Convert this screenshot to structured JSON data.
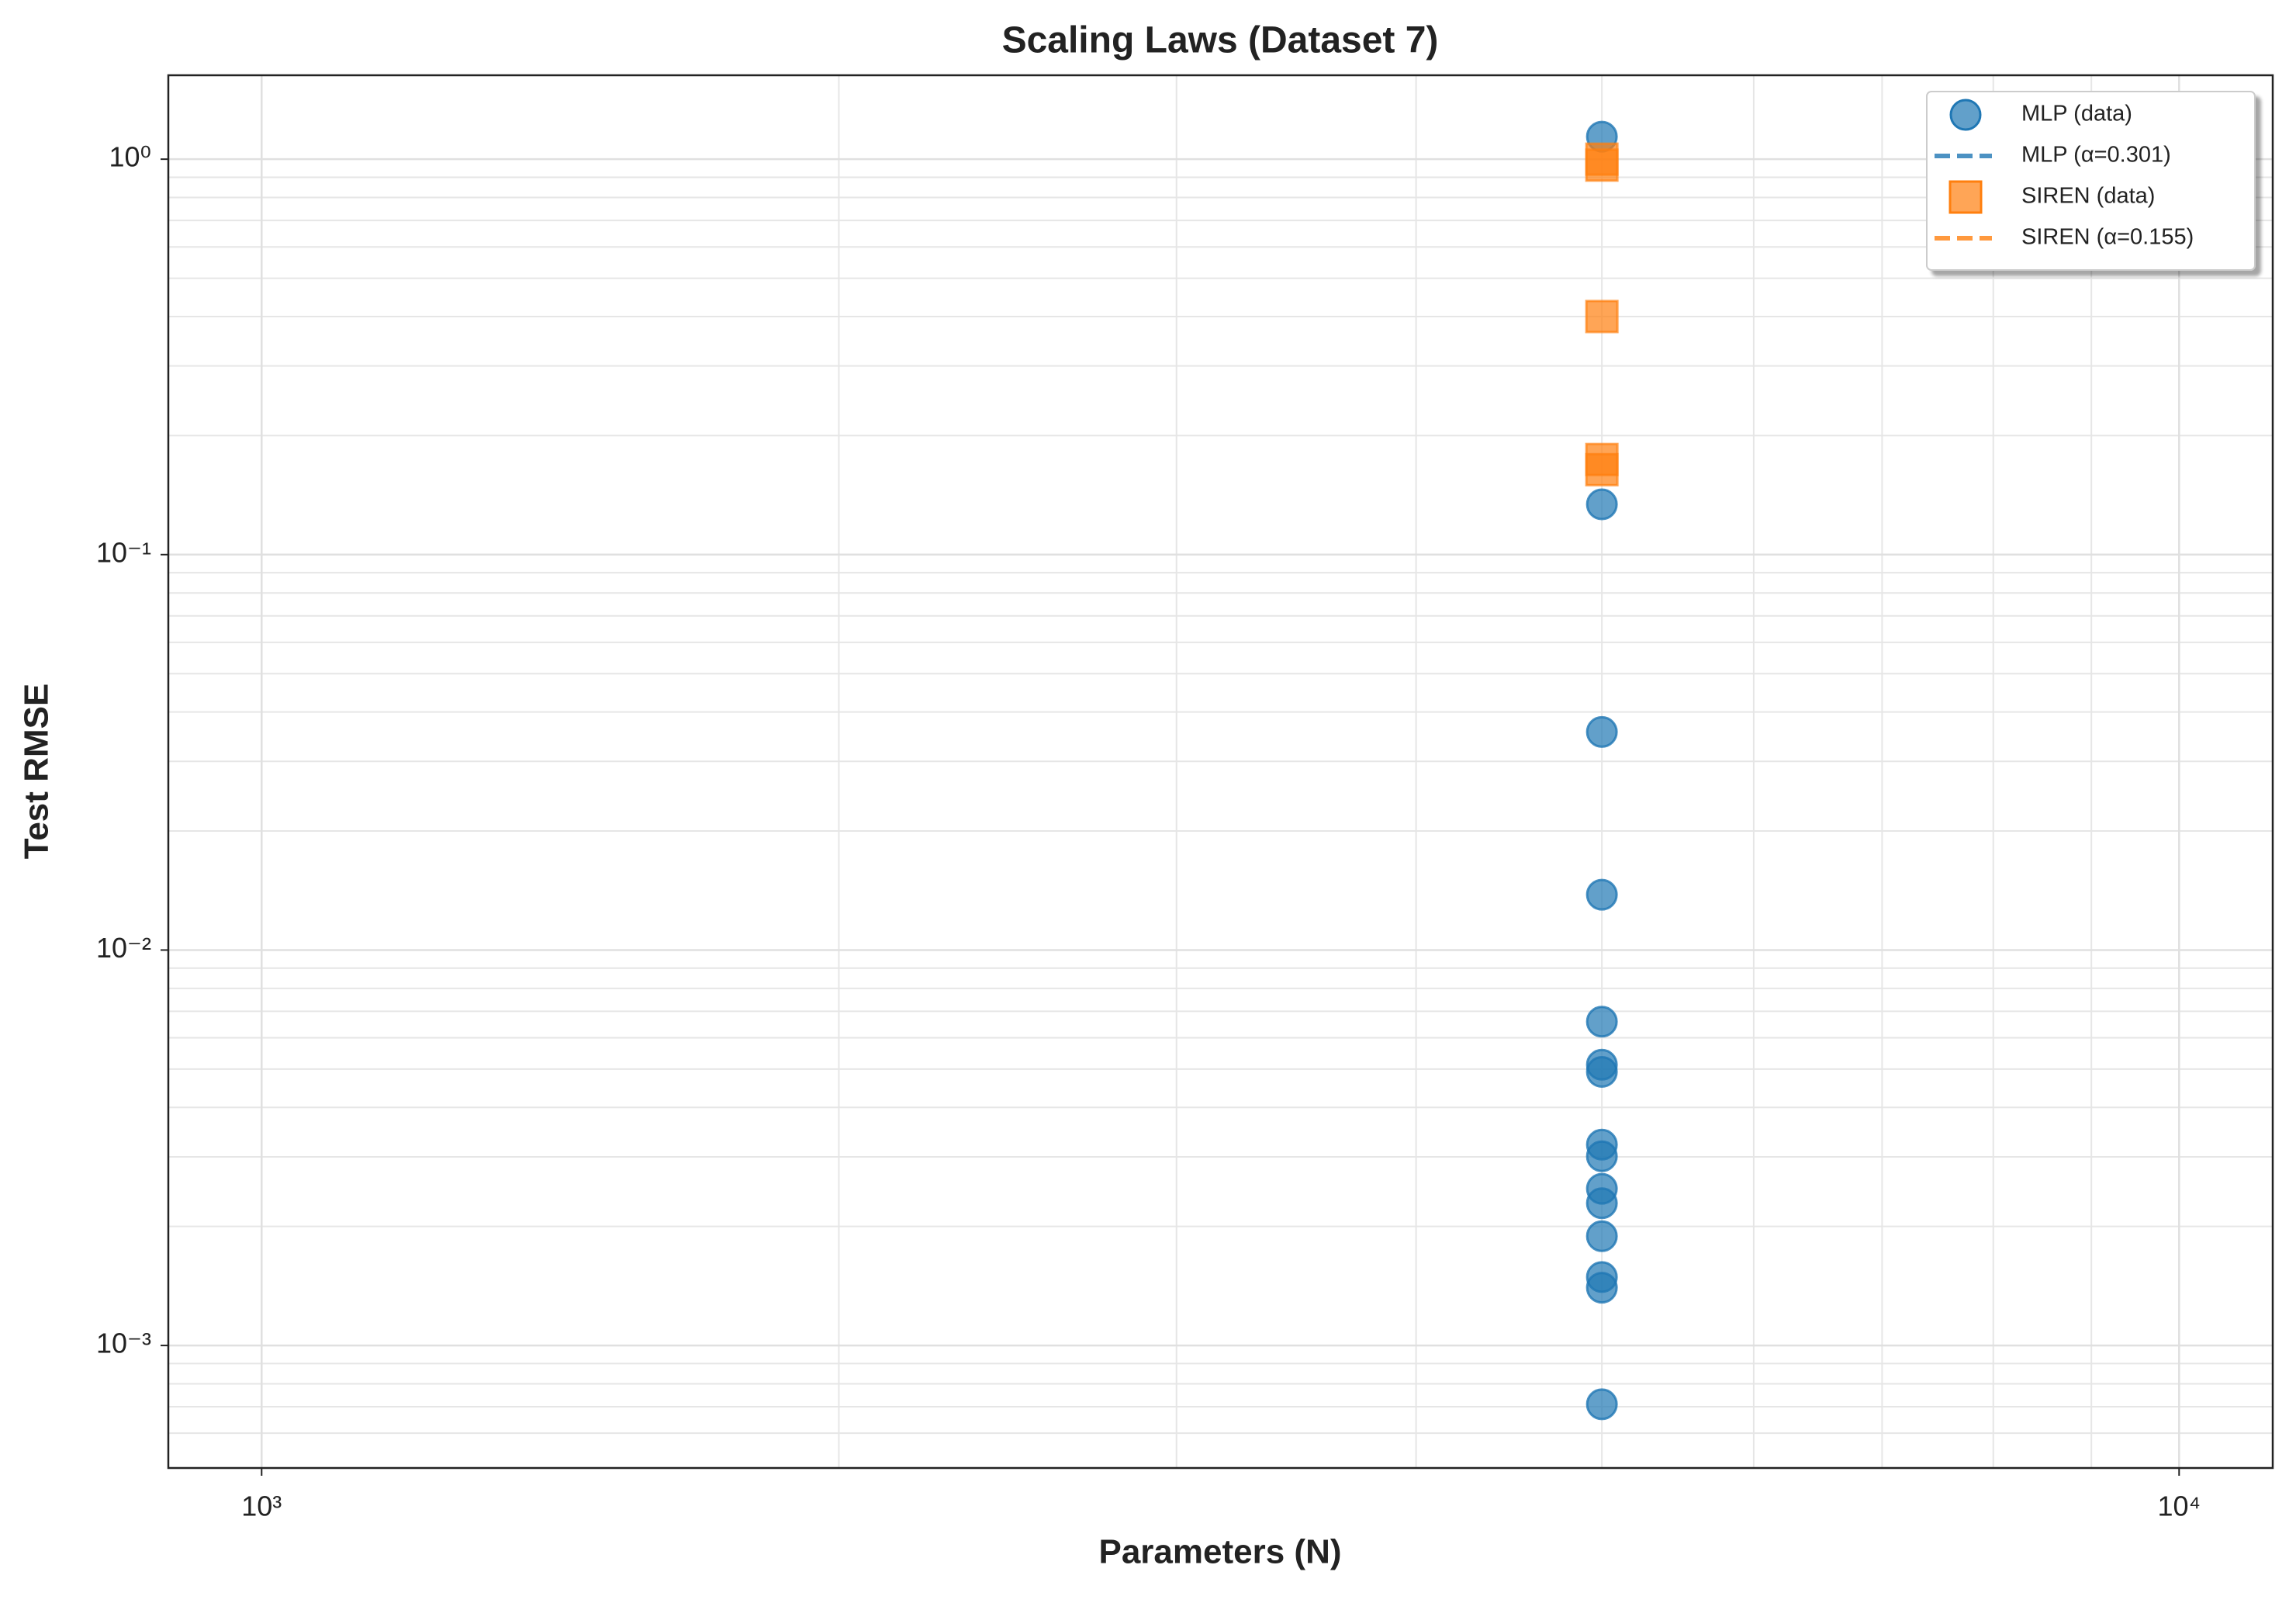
{
  "chart_data": {
    "type": "scatter",
    "title": "Scaling Laws (Dataset 7)",
    "xlabel": "Parameters (N)",
    "ylabel": "Test RMSE",
    "xscale": "log",
    "yscale": "log",
    "xlim": [
      894,
      11190
    ],
    "ylim": [
      0.00049,
      1.63
    ],
    "xticks": [
      {
        "value": 1000,
        "label": "10³"
      },
      {
        "value": 10000,
        "label": "10⁴"
      }
    ],
    "yticks": [
      {
        "value": 0.001,
        "label": "10⁻³"
      },
      {
        "value": 0.01,
        "label": "10⁻²"
      },
      {
        "value": 0.1,
        "label": "10⁻¹"
      },
      {
        "value": 1,
        "label": "10⁰"
      }
    ],
    "x_minor_ticks": [
      2000,
      3000,
      4000,
      5000,
      6000,
      7000,
      8000,
      9000
    ],
    "y_minor_ticks": [
      0.0006,
      0.0007,
      0.0008,
      0.0009,
      0.002,
      0.003,
      0.004,
      0.005,
      0.006,
      0.007,
      0.008,
      0.009,
      0.02,
      0.03,
      0.04,
      0.05,
      0.06,
      0.07,
      0.08,
      0.09,
      0.2,
      0.3,
      0.4,
      0.5,
      0.6,
      0.7,
      0.8,
      0.9
    ],
    "grid": true,
    "legend": "upper right",
    "series": [
      {
        "name": "MLP (data)",
        "color": "#1f77b4",
        "marker": "circle",
        "x": [
          5000,
          5000,
          5000,
          5000,
          5000,
          5000,
          5000,
          5000,
          5000,
          5000,
          5000,
          5000,
          5000,
          5000,
          5000
        ],
        "values": [
          1.14,
          0.134,
          0.0356,
          0.0138,
          0.00659,
          0.00513,
          0.00492,
          0.00322,
          0.00301,
          0.00249,
          0.00229,
          0.00189,
          0.00149,
          0.0014,
          0.00071
        ]
      },
      {
        "name": "MLP (α=0.301)",
        "color": "#1f77b4",
        "style": "dashed"
      },
      {
        "name": "SIREN (data)",
        "color": "#ff7f0e",
        "marker": "square",
        "x": [
          5000,
          5000,
          5000,
          5000,
          5000
        ],
        "values": [
          1.0,
          0.966,
          0.4,
          0.174,
          0.164
        ]
      },
      {
        "name": "SIREN (α=0.155)",
        "color": "#ff7f0e",
        "style": "dashed"
      }
    ]
  }
}
